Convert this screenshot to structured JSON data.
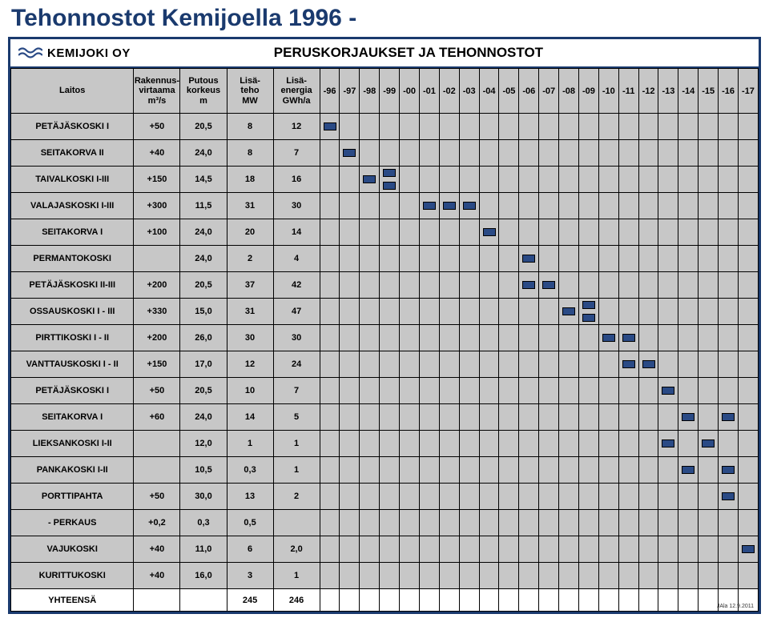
{
  "title": "Tehonnostot Kemijoella 1996 -",
  "company": "KEMIJOKI OY",
  "panelTitle": "PERUSKORJAUKSET JA TEHONNOSTOT",
  "footnote": "JAla 12.9.2011",
  "head": {
    "laitos": "Laitos",
    "rakennus": "Rakennus-\nvirtaama\nm³/s",
    "putous": "Putous\nkorkeus\nm",
    "lisateho": "Lisä-\nteho\nMW",
    "lisaenergia": "Lisä-\nenergia\nGWh/a"
  },
  "years": [
    "-96",
    "-97",
    "-98",
    "-99",
    "-00",
    "-01",
    "-02",
    "-03",
    "-04",
    "-05",
    "-06",
    "-07",
    "-08",
    "-09",
    "-10",
    "-11",
    "-12",
    "-13",
    "-14",
    "-15",
    "-16",
    "-17"
  ],
  "rows": [
    {
      "laitos": "PETÄJÄSKOSKI I",
      "v": [
        "+50",
        "20,5",
        "8",
        "12"
      ],
      "marks": [
        [
          0
        ]
      ]
    },
    {
      "laitos": "SEITAKORVA II",
      "v": [
        "+40",
        "24,0",
        "8",
        "7"
      ],
      "marks": [
        [
          1
        ]
      ]
    },
    {
      "laitos": "TAIVALKOSKI I-III",
      "v": [
        "+150",
        "14,5",
        "18",
        "16"
      ],
      "marks": [
        [
          2
        ],
        [
          3,
          "stack"
        ]
      ]
    },
    {
      "laitos": "VALAJASKOSKI I-III",
      "v": [
        "+300",
        "11,5",
        "31",
        "30"
      ],
      "marks": [
        [
          5
        ],
        [
          6
        ],
        [
          7
        ]
      ]
    },
    {
      "laitos": "SEITAKORVA I",
      "v": [
        "+100",
        "24,0",
        "20",
        "14"
      ],
      "marks": [
        [
          8
        ]
      ]
    },
    {
      "laitos": "PERMANTOKOSKI",
      "v": [
        "",
        "24,0",
        "2",
        "4"
      ],
      "marks": [
        [
          10
        ]
      ]
    },
    {
      "laitos": "PETÄJÄSKOSKI II-III",
      "v": [
        "+200",
        "20,5",
        "37",
        "42"
      ],
      "marks": [
        [
          10
        ],
        [
          11
        ]
      ]
    },
    {
      "laitos": "OSSAUSKOSKI I - III",
      "v": [
        "+330",
        "15,0",
        "31",
        "47"
      ],
      "marks": [
        [
          12
        ],
        [
          13,
          "stack"
        ]
      ]
    },
    {
      "laitos": "PIRTTIKOSKI I - II",
      "v": [
        "+200",
        "26,0",
        "30",
        "30"
      ],
      "marks": [
        [
          14
        ],
        [
          15
        ]
      ]
    },
    {
      "laitos": "VANTTAUSKOSKI I - II",
      "v": [
        "+150",
        "17,0",
        "12",
        "24"
      ],
      "marks": [
        [
          15
        ],
        [
          16
        ]
      ]
    },
    {
      "laitos": "PETÄJÄSKOSKI I",
      "v": [
        "+50",
        "20,5",
        "10",
        "7"
      ],
      "marks": [
        [
          17
        ]
      ]
    },
    {
      "laitos": "SEITAKORVA I",
      "v": [
        "+60",
        "24,0",
        "14",
        "5"
      ],
      "marks": [
        [
          18
        ],
        [
          20
        ]
      ]
    },
    {
      "laitos": "LIEKSANKOSKI I-II",
      "v": [
        "",
        "12,0",
        "1",
        "1"
      ],
      "marks": [
        [
          17
        ],
        [
          19
        ]
      ]
    },
    {
      "laitos": "PANKAKOSKI I-II",
      "v": [
        "",
        "10,5",
        "0,3",
        "1"
      ],
      "marks": [
        [
          18
        ],
        [
          20
        ]
      ]
    },
    {
      "laitos": "PORTTIPAHTA",
      "v": [
        "+50",
        "30,0",
        "13",
        "2"
      ],
      "marks": [
        [
          20
        ]
      ]
    },
    {
      "laitos": "- PERKAUS",
      "v": [
        "+0,2",
        "0,3",
        "0,5",
        ""
      ],
      "marks": []
    },
    {
      "laitos": "VAJUKOSKI",
      "v": [
        "+40",
        "11,0",
        "6",
        "2,0"
      ],
      "marks": [
        [
          21
        ]
      ]
    },
    {
      "laitos": "KURITTUKOSKI",
      "v": [
        "+40",
        "16,0",
        "3",
        "1"
      ],
      "marks": []
    }
  ],
  "total": {
    "laitos": "YHTEENSÄ",
    "v": [
      "",
      "",
      "245",
      "246"
    ]
  },
  "colors": {
    "panelBorder": "#1a3a6e",
    "titleColor": "#1a3a6e",
    "cellBg": "#c7c7c7",
    "marker": "#2a4a85",
    "white": "#ffffff"
  }
}
